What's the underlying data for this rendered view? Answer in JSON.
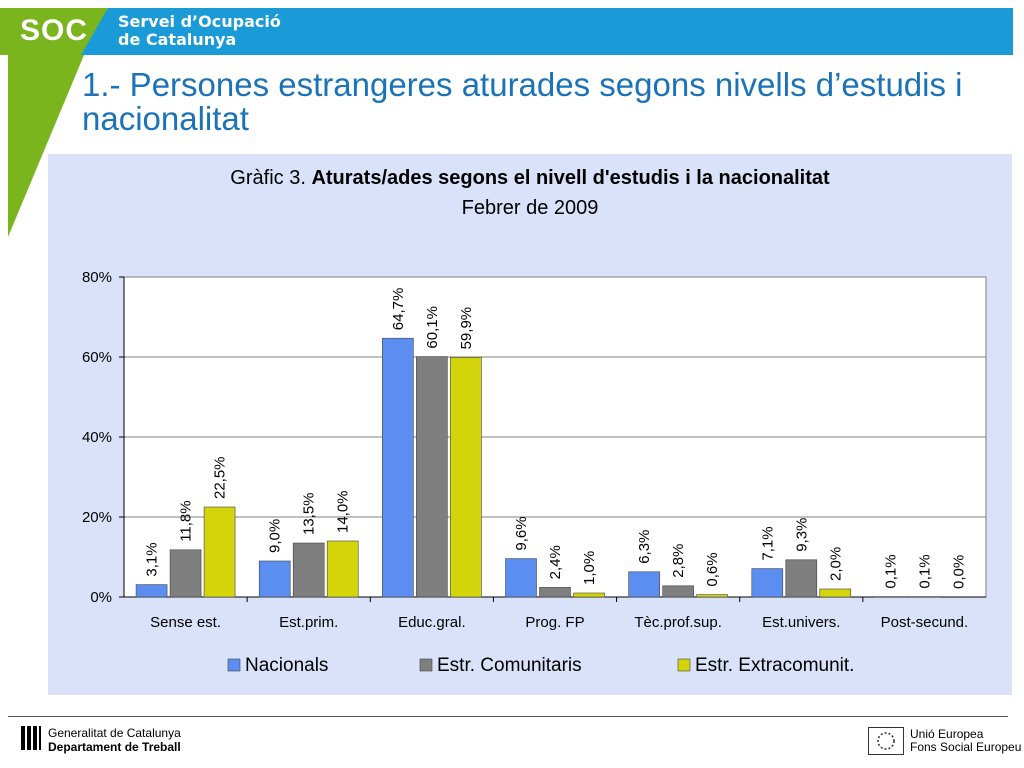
{
  "header": {
    "logo_text": "SOC",
    "org_line1": "Servei d’Ocupació",
    "org_line2": "de Catalunya"
  },
  "page": {
    "title": "1.- Persones estrangeres aturades segons nivells d’estudis i nacionalitat"
  },
  "chart_data": {
    "type": "bar",
    "title_prefix": "Gràfic 3. ",
    "title_bold": "Aturats/ades segons el nivell d'estudis i la nacionalitat",
    "subtitle": "Febrer de 2009",
    "categories": [
      "Sense est.",
      "Est.prim.",
      "Educ.gral.",
      "Prog. FP",
      "Tèc.prof.sup.",
      "Est.univers.",
      "Post-secund."
    ],
    "series": [
      {
        "name": "Nacionals",
        "color": "#5b8ef0",
        "values": [
          3.1,
          9.0,
          64.7,
          9.6,
          6.3,
          7.1,
          0.1
        ],
        "labels": [
          "3,1%",
          "9,0%",
          "64,7%",
          "9,6%",
          "6,3%",
          "7,1%",
          "0,1%"
        ]
      },
      {
        "name": "Estr. Comunitaris",
        "color": "#7f7f7f",
        "values": [
          11.8,
          13.5,
          60.1,
          2.4,
          2.8,
          9.3,
          0.1
        ],
        "labels": [
          "11,8%",
          "13,5%",
          "60,1%",
          "2,4%",
          "2,8%",
          "9,3%",
          "0,1%"
        ]
      },
      {
        "name": "Estr. Extracomunit.",
        "color": "#d4d40a",
        "values": [
          22.5,
          14.0,
          59.9,
          1.0,
          0.6,
          2.0,
          0.0
        ],
        "labels": [
          "22,5%",
          "14,0%",
          "59,9%",
          "1,0%",
          "0,6%",
          "2,0%",
          "0,0%"
        ]
      }
    ],
    "yticks": [
      0,
      20,
      40,
      60,
      80
    ],
    "ytick_labels": [
      "0%",
      "20%",
      "40%",
      "60%",
      "80%"
    ],
    "ylim": [
      0,
      80
    ],
    "grid": true,
    "legend_position": "bottom"
  },
  "footer": {
    "left_line1": "Generalitat de Catalunya",
    "left_line2": "Departament de Treball",
    "right_line1": "Unió Europea",
    "right_line2": "Fons Social Europeu"
  }
}
